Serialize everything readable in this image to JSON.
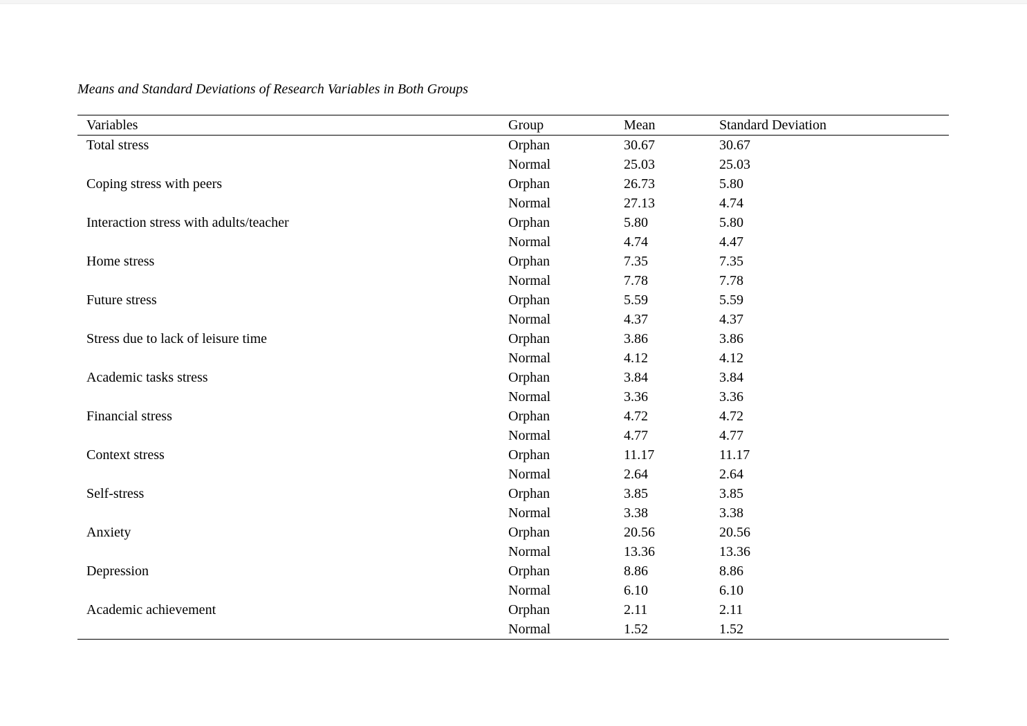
{
  "title": "Means and Standard Deviations of Research Variables in Both Groups",
  "colors": {
    "background": "#ffffff",
    "text": "#000000",
    "rule": "#000000"
  },
  "table": {
    "headers": [
      "Variables",
      "Group",
      "Mean",
      "Standard Deviation"
    ],
    "rows": [
      {
        "variable": "Total stress",
        "groups": [
          {
            "group": "Orphan",
            "mean": "30.67",
            "sd": "30.67"
          },
          {
            "group": "Normal",
            "mean": "25.03",
            "sd": "25.03"
          }
        ]
      },
      {
        "variable": "Coping stress with peers",
        "groups": [
          {
            "group": "Orphan",
            "mean": "26.73",
            "sd": "5.80"
          },
          {
            "group": "Normal",
            "mean": "27.13",
            "sd": "4.74"
          }
        ]
      },
      {
        "variable": "Interaction stress with adults/teacher",
        "groups": [
          {
            "group": "Orphan",
            "mean": "5.80",
            "sd": "5.80"
          },
          {
            "group": "Normal",
            "mean": "4.74",
            "sd": "4.47"
          }
        ]
      },
      {
        "variable": "Home stress",
        "groups": [
          {
            "group": "Orphan",
            "mean": "7.35",
            "sd": "7.35"
          },
          {
            "group": "Normal",
            "mean": "7.78",
            "sd": "7.78"
          }
        ]
      },
      {
        "variable": "Future stress",
        "groups": [
          {
            "group": "Orphan",
            "mean": "5.59",
            "sd": "5.59"
          },
          {
            "group": "Normal",
            "mean": "4.37",
            "sd": "4.37"
          }
        ]
      },
      {
        "variable": "Stress due to lack of leisure time",
        "groups": [
          {
            "group": "Orphan",
            "mean": "3.86",
            "sd": "3.86"
          },
          {
            "group": "Normal",
            "mean": "4.12",
            "sd": "4.12"
          }
        ]
      },
      {
        "variable": "Academic tasks stress",
        "groups": [
          {
            "group": "Orphan",
            "mean": "3.84",
            "sd": "3.84"
          },
          {
            "group": "Normal",
            "mean": "3.36",
            "sd": "3.36"
          }
        ]
      },
      {
        "variable": "Financial stress",
        "groups": [
          {
            "group": "Orphan",
            "mean": "4.72",
            "sd": "4.72"
          },
          {
            "group": "Normal",
            "mean": "4.77",
            "sd": "4.77"
          }
        ]
      },
      {
        "variable": "Context stress",
        "groups": [
          {
            "group": "Orphan",
            "mean": "11.17",
            "sd": "11.17"
          },
          {
            "group": "Normal",
            "mean": "2.64",
            "sd": "2.64"
          }
        ]
      },
      {
        "variable": "Self-stress",
        "groups": [
          {
            "group": "Orphan",
            "mean": "3.85",
            "sd": "3.85"
          },
          {
            "group": "Normal",
            "mean": "3.38",
            "sd": "3.38"
          }
        ]
      },
      {
        "variable": "Anxiety",
        "groups": [
          {
            "group": "Orphan",
            "mean": "20.56",
            "sd": "20.56"
          },
          {
            "group": "Normal",
            "mean": "13.36",
            "sd": "13.36"
          }
        ]
      },
      {
        "variable": "Depression",
        "groups": [
          {
            "group": "Orphan",
            "mean": "8.86",
            "sd": "8.86"
          },
          {
            "group": "Normal",
            "mean": "6.10",
            "sd": "6.10"
          }
        ]
      },
      {
        "variable": "Academic achievement",
        "groups": [
          {
            "group": "Orphan",
            "mean": "2.11",
            "sd": "2.11"
          },
          {
            "group": "Normal",
            "mean": "1.52",
            "sd": "1.52"
          }
        ]
      }
    ]
  }
}
